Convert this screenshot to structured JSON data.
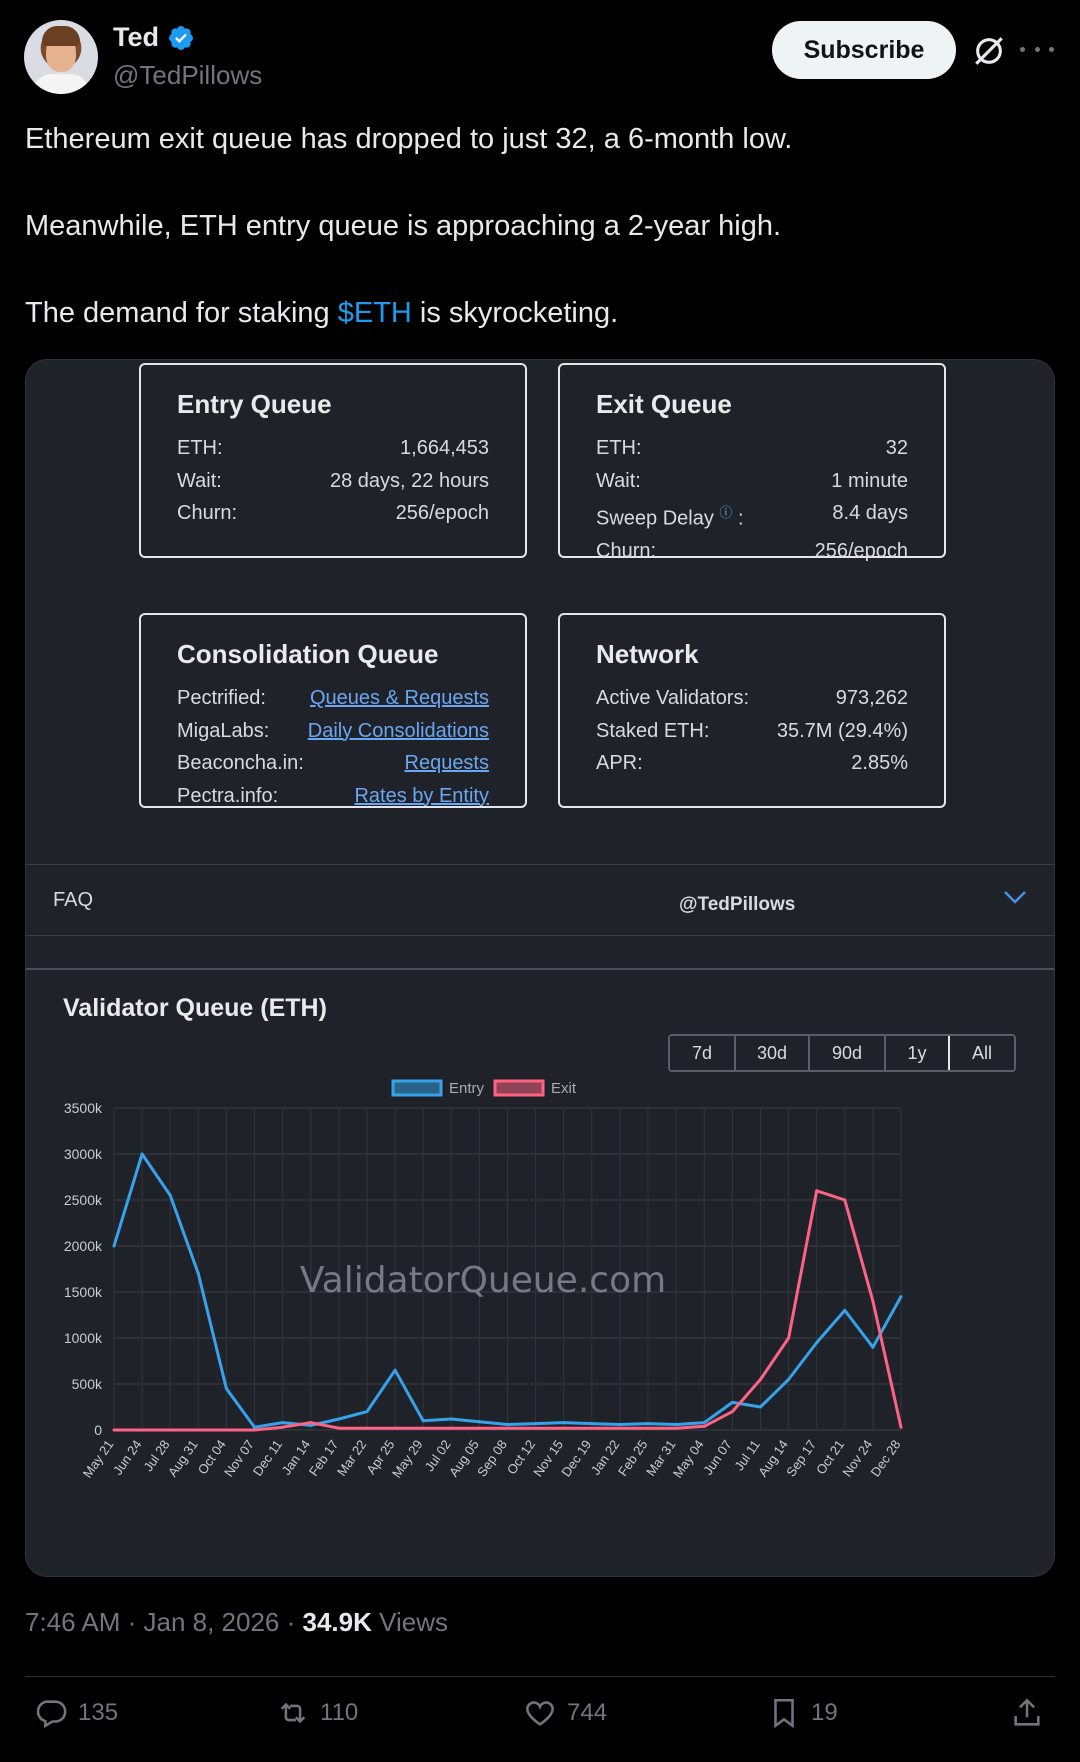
{
  "author": {
    "name": "Ted",
    "handle": "@TedPillows",
    "subscribe_label": "Subscribe"
  },
  "tweet": {
    "line1": "Ethereum exit queue has dropped to just 32, a 6-month low.",
    "line2": "Meanwhile, ETH entry queue is approaching a 2-year high.",
    "line3_pre": "The demand for staking ",
    "line3_tag": "$ETH",
    "line3_post": " is skyrocketing."
  },
  "entry_queue": {
    "title": "Entry Queue",
    "rows": [
      {
        "label": "ETH:",
        "value": "1,664,453"
      },
      {
        "label": "Wait:",
        "value": "28 days, 22 hours"
      },
      {
        "label": "Churn:",
        "value": "256/epoch"
      }
    ]
  },
  "exit_queue": {
    "title": "Exit Queue",
    "rows": [
      {
        "label": "ETH:",
        "value": "32"
      },
      {
        "label": "Wait:",
        "value": "1 minute"
      },
      {
        "label": "Sweep Delay",
        "suffix": " :",
        "value": "8.4 days"
      },
      {
        "label": "Churn:",
        "value": "256/epoch"
      }
    ]
  },
  "consolidation_queue": {
    "title": "Consolidation Queue",
    "rows": [
      {
        "label": "Pectrified:",
        "value": "Queues & Requests"
      },
      {
        "label": "MigaLabs:",
        "value": "Daily Consolidations"
      },
      {
        "label": "Beaconcha.in:",
        "value": "Requests"
      },
      {
        "label": "Pectra.info:",
        "value": "Rates by Entity"
      }
    ]
  },
  "network": {
    "title": "Network",
    "rows": [
      {
        "label": "Active Validators:",
        "value": "973,262"
      },
      {
        "label": "Staked ETH:",
        "value": "35.7M (29.4%)"
      },
      {
        "label": "APR:",
        "value": "2.85%"
      }
    ]
  },
  "faq": {
    "label": "FAQ",
    "handle": "@TedPillows"
  },
  "chart_panel": {
    "title": "Validator Queue (ETH)",
    "ranges": [
      "7d",
      "30d",
      "90d",
      "1y",
      "All"
    ],
    "active_range": "All",
    "watermark": "ValidatorQueue.com"
  },
  "chart_data": {
    "type": "line",
    "title": "Validator Queue (ETH)",
    "x": [
      "May 21",
      "Jun 24",
      "Jul 28",
      "Aug 31",
      "Oct 04",
      "Nov 07",
      "Dec 11",
      "Jan 14",
      "Feb 17",
      "Mar 22",
      "Apr 25",
      "May 29",
      "Jul 02",
      "Aug 05",
      "Sep 08",
      "Oct 12",
      "Nov 15",
      "Dec 19",
      "Jan 22",
      "Feb 25",
      "Mar 31",
      "May 04",
      "Jun 07",
      "Jul 11",
      "Aug 14",
      "Sep 17",
      "Oct 21",
      "Nov 24",
      "Dec 28"
    ],
    "y_ticks": [
      "0",
      "500k",
      "1000k",
      "1500k",
      "2000k",
      "2500k",
      "3000k",
      "3500k"
    ],
    "ylim": [
      0,
      3500000
    ],
    "legend_position": "top",
    "grid": true,
    "series": [
      {
        "name": "Entry",
        "color": "#36a2eb",
        "values": [
          2000000,
          3000000,
          2550000,
          1700000,
          450000,
          30000,
          80000,
          50000,
          120000,
          200000,
          650000,
          100000,
          120000,
          90000,
          60000,
          70000,
          80000,
          70000,
          60000,
          70000,
          60000,
          80000,
          300000,
          250000,
          550000,
          950000,
          1300000,
          900000,
          1450000
        ]
      },
      {
        "name": "Exit",
        "color": "#ff6384",
        "values": [
          0,
          0,
          0,
          0,
          0,
          0,
          30000,
          80000,
          20000,
          20000,
          20000,
          20000,
          20000,
          20000,
          20000,
          20000,
          20000,
          20000,
          20000,
          20000,
          20000,
          40000,
          200000,
          550000,
          1000000,
          2600000,
          2500000,
          1400000,
          30000
        ]
      }
    ]
  },
  "meta": {
    "time": "7:46 AM · Jan 8, 2026 · ",
    "views_count": "34.9K",
    "views_label": " Views"
  },
  "actions": {
    "replies": "135",
    "reposts": "110",
    "likes": "744",
    "bookmarks": "19"
  }
}
